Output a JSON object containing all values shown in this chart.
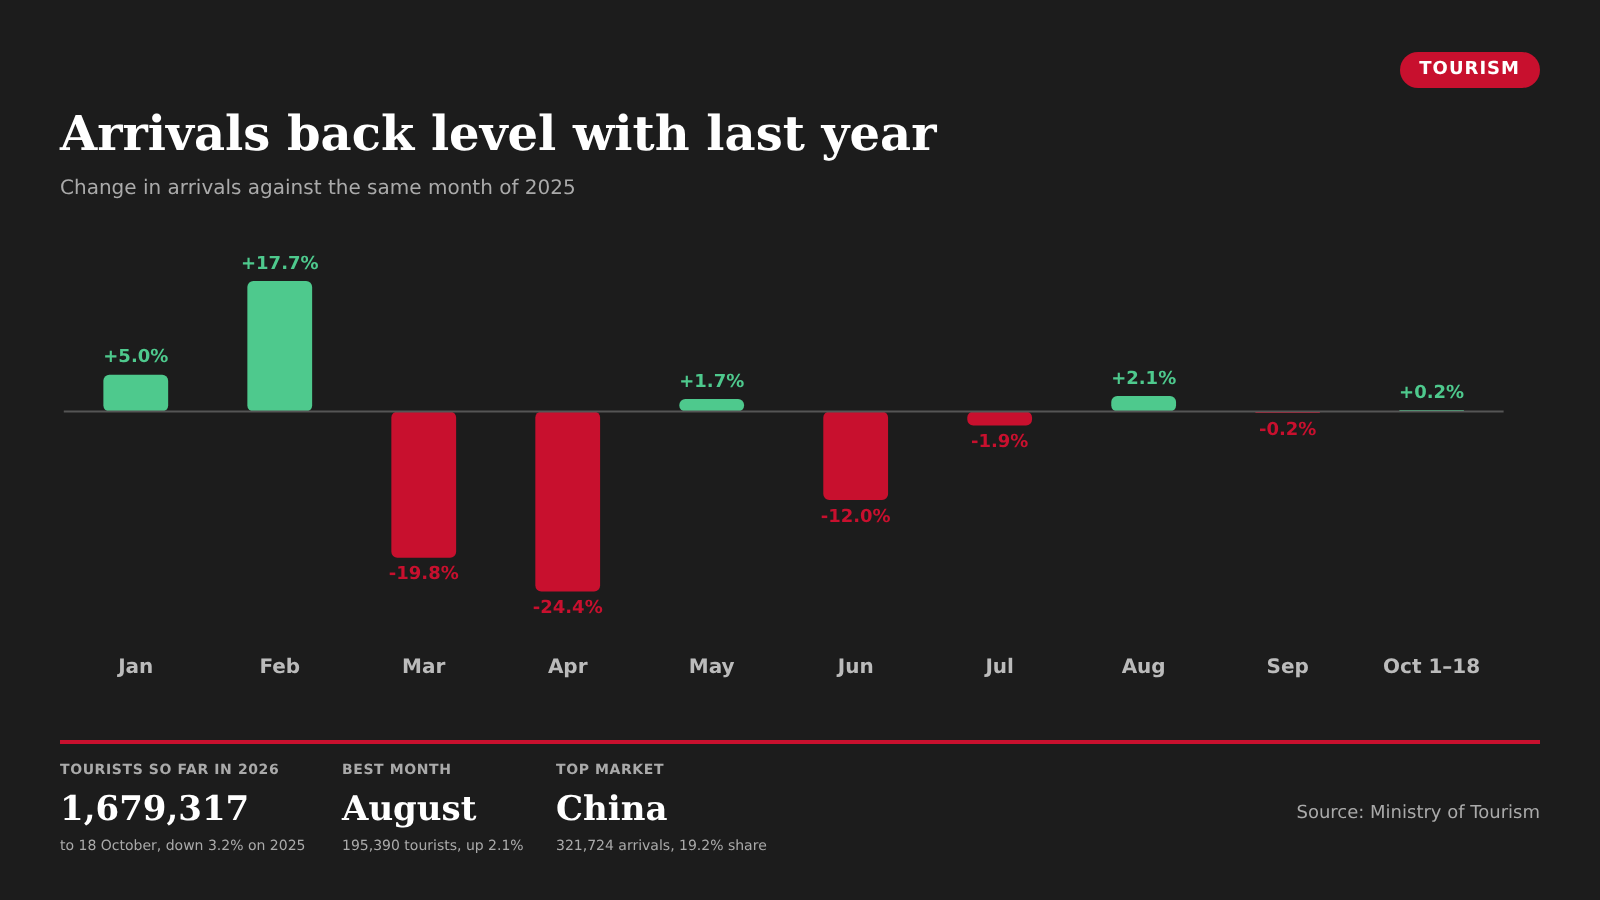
{
  "chart_data": {
    "type": "bar",
    "title": "Arrivals back level with last year",
    "subtitle": "Change in arrivals against the same month of 2025",
    "categories": [
      "Jan",
      "Feb",
      "Mar",
      "Apr",
      "May",
      "Jun",
      "Jul",
      "Aug",
      "Sep",
      "Oct 1–18"
    ],
    "values": [
      5.0,
      17.7,
      -19.8,
      -24.4,
      1.7,
      -12.0,
      -1.9,
      2.1,
      -0.2,
      0.2
    ],
    "colors": [
      "#4ec98d",
      "#4ec98d",
      "#c8102e",
      "#c8102e",
      "#4ec98d",
      "#c8102e",
      "#c8102e",
      "#4ec98d",
      "#c8102e",
      "#4ec98d"
    ],
    "value_labels": [
      "+5.0%",
      "+17.7%",
      "-19.8%",
      "-24.4%",
      "+1.7%",
      "-12.0%",
      "-1.9%",
      "+2.1%",
      "-0.2%",
      "+0.2%"
    ],
    "ref_lines": [
      {
        "axis": "y",
        "value": 0,
        "color": "#555555"
      }
    ],
    "legend": false,
    "tick_labels": "x",
    "annotations": [
      "TOURISM",
      "TOURISTS SO FAR IN 2026",
      "1,679,317",
      "to 18 October, down 3.2% on 2025",
      "BEST MONTH",
      "August",
      "195,390 tourists, up 2.1%",
      "TOP MARKET",
      "China",
      "321,724 arrivals, 19.2% share",
      "Source: Ministry of Tourism"
    ]
  }
}
